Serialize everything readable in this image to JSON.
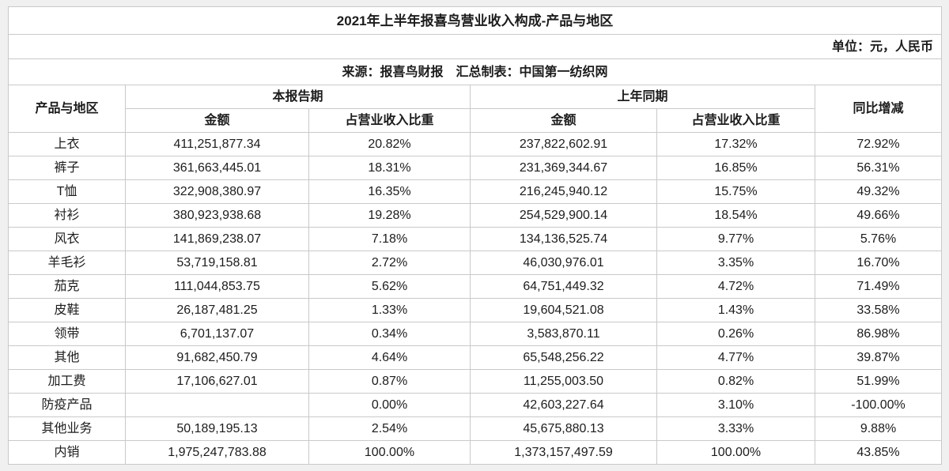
{
  "chart_data": {
    "type": "table",
    "title": "2021年上半年报喜鸟营业收入构成-产品与地区",
    "unit_note": "单位：元，人民币",
    "source_note": "来源：报喜鸟财报　汇总制表：中国第一纺织网",
    "column_groups": [
      {
        "label": "产品与地区",
        "span": 1
      },
      {
        "label": "本报告期",
        "span": 2
      },
      {
        "label": "上年同期",
        "span": 2
      },
      {
        "label": "同比增减",
        "span": 1
      }
    ],
    "sub_headers": [
      "金额",
      "占营业收入比重",
      "金额",
      "占营业收入比重"
    ],
    "rows": [
      [
        "上衣",
        "411,251,877.34",
        "20.82%",
        "237,822,602.91",
        "17.32%",
        "72.92%"
      ],
      [
        "裤子",
        "361,663,445.01",
        "18.31%",
        "231,369,344.67",
        "16.85%",
        "56.31%"
      ],
      [
        "T恤",
        "322,908,380.97",
        "16.35%",
        "216,245,940.12",
        "15.75%",
        "49.32%"
      ],
      [
        "衬衫",
        "380,923,938.68",
        "19.28%",
        "254,529,900.14",
        "18.54%",
        "49.66%"
      ],
      [
        "风衣",
        "141,869,238.07",
        "7.18%",
        "134,136,525.74",
        "9.77%",
        "5.76%"
      ],
      [
        "羊毛衫",
        "53,719,158.81",
        "2.72%",
        "46,030,976.01",
        "3.35%",
        "16.70%"
      ],
      [
        "茄克",
        "111,044,853.75",
        "5.62%",
        "64,751,449.32",
        "4.72%",
        "71.49%"
      ],
      [
        "皮鞋",
        "26,187,481.25",
        "1.33%",
        "19,604,521.08",
        "1.43%",
        "33.58%"
      ],
      [
        "领带",
        "6,701,137.07",
        "0.34%",
        "3,583,870.11",
        "0.26%",
        "86.98%"
      ],
      [
        "其他",
        "91,682,450.79",
        "4.64%",
        "65,548,256.22",
        "4.77%",
        "39.87%"
      ],
      [
        "加工费",
        "17,106,627.01",
        "0.87%",
        "11,255,003.50",
        "0.82%",
        "51.99%"
      ],
      [
        "防疫产品",
        "",
        "0.00%",
        "42,603,227.64",
        "3.10%",
        "-100.00%"
      ],
      [
        "其他业务",
        "50,189,195.13",
        "2.54%",
        "45,675,880.13",
        "3.33%",
        "9.88%"
      ],
      [
        "内销",
        "1,975,247,783.88",
        "100.00%",
        "1,373,157,497.59",
        "100.00%",
        "43.85%"
      ]
    ]
  },
  "colors": {
    "page_background": "#eff0ef",
    "table_background": "#ffffff",
    "border": "#c9c9c9",
    "text": "#1c1c1c"
  }
}
